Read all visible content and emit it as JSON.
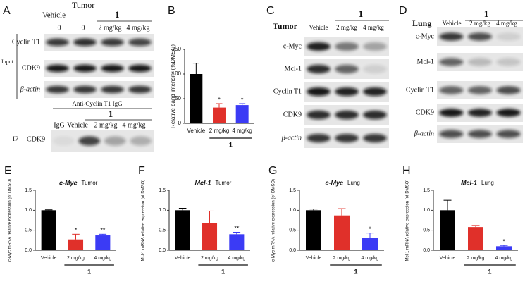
{
  "panels": {
    "A": {
      "label": "A",
      "title": "Tumor",
      "group_vehicle": "Vehicle",
      "group_1": "1",
      "lanes": [
        "0",
        "0",
        "2 mg/kg",
        "4 mg/kg"
      ],
      "section": "Input",
      "rows": [
        "Cyclin T1",
        "CDK9",
        "β-actin"
      ],
      "ip_antibody": "Anti-Cyclin T1 IgG",
      "ip_group": "1",
      "ip_lanes": [
        "IgG",
        "Vehicle",
        "2 mg/kg",
        "4 mg/kg"
      ],
      "ip_section": "IP",
      "ip_row": "CDK9"
    },
    "C": {
      "label": "C",
      "tissue": "Tumor",
      "group": "1",
      "lanes": [
        "Vehicle",
        "2 mg/kg",
        "4 mg/kg"
      ],
      "rows": [
        "c-Myc",
        "Mcl-1",
        "Cyclin T1",
        "CDK9",
        "β-actin"
      ]
    },
    "D": {
      "label": "D",
      "tissue": "Lung",
      "group": "1",
      "lanes": [
        "Vehicle",
        "2 mg/kg",
        "4 mg/kg"
      ],
      "rows": [
        "c-Myc",
        "Mcl-1",
        "Cyclin T1",
        "CDK9",
        "β-actin"
      ]
    }
  },
  "chart_data": [
    {
      "type": "bar",
      "panel": "B",
      "ylabel": "Relative band intensity (%DMSO)",
      "categories": [
        "Vehicle",
        "2 mg/kg",
        "4 mg/kg"
      ],
      "group_label": "1",
      "values": [
        100,
        32,
        37
      ],
      "errors": [
        22,
        8,
        3
      ],
      "significance": [
        null,
        "*",
        "*"
      ],
      "colors": [
        "#000000",
        "#e0302a",
        "#3b3bf5"
      ],
      "ylim": [
        0,
        150
      ],
      "yticks": [
        0,
        50,
        100,
        150
      ]
    },
    {
      "type": "bar",
      "panel": "E",
      "title": "c-Myc",
      "subtitle": "Tumor",
      "ylabel": "c-Myc mRNA relative expression (of DMSO)",
      "categories": [
        "Vehicle",
        "2 mg/kg",
        "4 mg/kg"
      ],
      "group_label": "1",
      "values": [
        1.0,
        0.27,
        0.37
      ],
      "errors": [
        0.01,
        0.13,
        0.03
      ],
      "significance": [
        null,
        "*",
        "**"
      ],
      "colors": [
        "#000000",
        "#e0302a",
        "#3b3bf5"
      ],
      "ylim": [
        0,
        1.5
      ],
      "yticks": [
        {
          "value": 0,
          "label": "0.0"
        },
        0.5,
        {
          "value": 1,
          "label": "1.0"
        },
        1.5
      ]
    },
    {
      "type": "bar",
      "panel": "F",
      "title": "Mcl-1",
      "subtitle": "Tumor",
      "ylabel": "Mcl-1 mRNA relative expression (of DMSO)",
      "categories": [
        "Vehicle",
        "2 mg/kg",
        "4 mg/kg"
      ],
      "group_label": "1",
      "values": [
        1.0,
        0.68,
        0.4
      ],
      "errors": [
        0.05,
        0.3,
        0.05
      ],
      "significance": [
        null,
        null,
        "**"
      ],
      "colors": [
        "#000000",
        "#e0302a",
        "#3b3bf5"
      ],
      "ylim": [
        0,
        1.5
      ],
      "yticks": [
        {
          "value": 0,
          "label": "0.0"
        },
        0.5,
        {
          "value": 1,
          "label": "1.0"
        },
        1.5
      ]
    },
    {
      "type": "bar",
      "panel": "G",
      "title": "c-Myc",
      "subtitle": "Lung",
      "ylabel": "c-Myc mRNA relative expression (of DMSO)",
      "categories": [
        "Vehicle",
        "2 mg/kg",
        "4 mg/kg"
      ],
      "group_label": "1",
      "values": [
        1.0,
        0.87,
        0.3
      ],
      "errors": [
        0.03,
        0.17,
        0.13
      ],
      "significance": [
        null,
        null,
        "*"
      ],
      "colors": [
        "#000000",
        "#e0302a",
        "#3b3bf5"
      ],
      "ylim": [
        0,
        1.5
      ],
      "yticks": [
        {
          "value": 0,
          "label": "0.0"
        },
        0.5,
        {
          "value": 1,
          "label": "1.0"
        },
        1.5
      ]
    },
    {
      "type": "bar",
      "panel": "H",
      "title": "Mcl-1",
      "subtitle": "Lung",
      "ylabel": "Mcl-1 mRNA relative expression (of DMSO)",
      "categories": [
        "Vehicle",
        "2 mg/kg",
        "4 mg/kg"
      ],
      "group_label": "1",
      "values": [
        1.0,
        0.58,
        0.1
      ],
      "errors": [
        0.25,
        0.04,
        0.02
      ],
      "significance": [
        null,
        null,
        "*"
      ],
      "colors": [
        "#000000",
        "#e0302a",
        "#3b3bf5"
      ],
      "ylim": [
        0,
        1.5
      ],
      "yticks": [
        {
          "value": 0,
          "label": "0.0"
        },
        0.5,
        {
          "value": 1,
          "label": "1.0"
        },
        1.5
      ]
    }
  ]
}
